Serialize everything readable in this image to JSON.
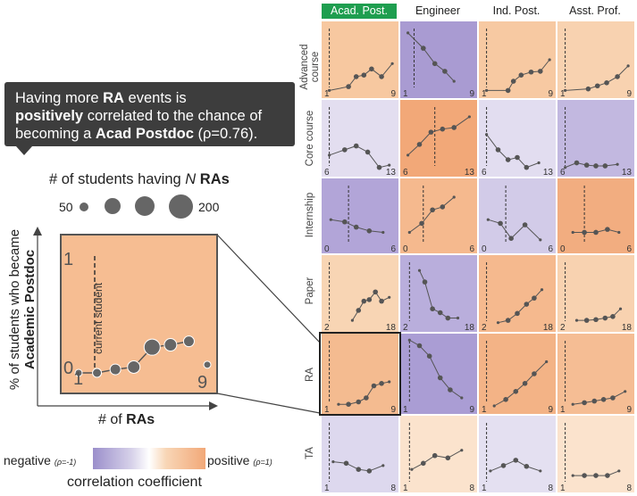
{
  "callout": {
    "line1_pre": "Having more ",
    "line1_bold": "RA",
    "line1_post": " events is",
    "line2_bold": "positively",
    "line2_post": " correlated to the chance of",
    "line3_pre": "becoming a ",
    "line3_bold": "Acad Postdoc",
    "line3_post": " (ρ=0.76)."
  },
  "size_legend": {
    "title_pre": "# of students having ",
    "title_n": "N",
    "title_bold": "RAs",
    "min": "50",
    "max": "200"
  },
  "zoom": {
    "y_axis_pre": "% of students who became",
    "y_axis_bold": "Academic Postdoc",
    "x_axis_pre": "# of ",
    "x_axis_bold": "RAs",
    "y_top": "1",
    "y_bottom": "0",
    "x_min": "1",
    "x_max": "9",
    "current_label": "current student"
  },
  "color_legend": {
    "negative": "negative",
    "negative_note": "(ρ=-1)",
    "positive": "positive",
    "positive_note": "(ρ=1)",
    "title": "correlation coefficient",
    "neg_color": "#9b8fcb",
    "pos_color": "#f2a878"
  },
  "columns": [
    "Acad. Post.",
    "Engineer",
    "Ind. Post.",
    "Asst. Prof."
  ],
  "active_column": 0,
  "rows": [
    "Advanced course",
    "Core course",
    "Internship",
    "Paper",
    "RA",
    "TA"
  ],
  "highlight_cell": {
    "row": 4,
    "col": 0
  },
  "axis_ranges": [
    [
      "1",
      "9"
    ],
    [
      "6",
      "13"
    ],
    [
      "0",
      "6"
    ],
    [
      "2",
      "18"
    ],
    [
      "1",
      "9"
    ],
    [
      "1",
      "8"
    ]
  ],
  "cell_colors": [
    [
      "#f7c8a0",
      "#a99bd2",
      "#f7c9a2",
      "#f8d2b0"
    ],
    [
      "#e3def0",
      "#f2a878",
      "#e2ddf0",
      "#c2b8e0"
    ],
    [
      "#b2a5d8",
      "#f5b98e",
      "#d2cbe8",
      "#f2ad80"
    ],
    [
      "#f8d5b4",
      "#b9aedc",
      "#f5b98e",
      "#f8d2b0"
    ],
    [
      "#f4bb90",
      "#aa9dd4",
      "#f3b386",
      "#f5bd94"
    ],
    [
      "#ddd8ee",
      "#fbe3cd",
      "#e4e0f1",
      "#fbe3cd"
    ]
  ],
  "zoom_points": [
    {
      "x": 1,
      "y": 0.0,
      "s": 4
    },
    {
      "x": 2,
      "y": 0.0,
      "s": 5
    },
    {
      "x": 3,
      "y": 0.03,
      "s": 6
    },
    {
      "x": 4,
      "y": 0.05,
      "s": 7
    },
    {
      "x": 5,
      "y": 0.22,
      "s": 9
    },
    {
      "x": 6,
      "y": 0.24,
      "s": 7
    },
    {
      "x": 7,
      "y": 0.27,
      "s": 6
    },
    {
      "x": 8,
      "y": 0.07,
      "s": 4
    }
  ],
  "cell_series": [
    [
      [
        [
          0.1,
          0.9
        ],
        [
          0.35,
          0.85
        ],
        [
          0.45,
          0.72
        ],
        [
          0.55,
          0.7
        ],
        [
          0.65,
          0.62
        ],
        [
          0.78,
          0.72
        ],
        [
          0.92,
          0.55
        ]
      ],
      [
        [
          0.1,
          0.15
        ],
        [
          0.3,
          0.35
        ],
        [
          0.45,
          0.55
        ],
        [
          0.58,
          0.65
        ],
        [
          0.7,
          0.78
        ]
      ],
      [
        [
          0.1,
          0.9
        ],
        [
          0.38,
          0.9
        ],
        [
          0.45,
          0.78
        ],
        [
          0.55,
          0.7
        ],
        [
          0.68,
          0.66
        ],
        [
          0.8,
          0.65
        ],
        [
          0.92,
          0.5
        ]
      ],
      [
        [
          0.1,
          0.9
        ],
        [
          0.4,
          0.88
        ],
        [
          0.52,
          0.84
        ],
        [
          0.64,
          0.8
        ],
        [
          0.78,
          0.72
        ],
        [
          0.92,
          0.58
        ]
      ]
    ],
    [
      [
        [
          0.1,
          0.72
        ],
        [
          0.3,
          0.65
        ],
        [
          0.45,
          0.6
        ],
        [
          0.6,
          0.68
        ],
        [
          0.75,
          0.88
        ],
        [
          0.88,
          0.85
        ]
      ],
      [
        [
          0.1,
          0.72
        ],
        [
          0.25,
          0.58
        ],
        [
          0.4,
          0.42
        ],
        [
          0.55,
          0.38
        ],
        [
          0.7,
          0.36
        ],
        [
          0.9,
          0.22
        ]
      ],
      [
        [
          0.1,
          0.45
        ],
        [
          0.25,
          0.65
        ],
        [
          0.38,
          0.78
        ],
        [
          0.5,
          0.75
        ],
        [
          0.62,
          0.88
        ],
        [
          0.78,
          0.82
        ]
      ],
      [
        [
          0.1,
          0.88
        ],
        [
          0.25,
          0.82
        ],
        [
          0.38,
          0.85
        ],
        [
          0.5,
          0.86
        ],
        [
          0.62,
          0.86
        ],
        [
          0.78,
          0.84
        ]
      ]
    ],
    [
      [
        [
          0.12,
          0.55
        ],
        [
          0.3,
          0.58
        ],
        [
          0.45,
          0.65
        ],
        [
          0.62,
          0.7
        ],
        [
          0.8,
          0.72
        ]
      ],
      [
        [
          0.12,
          0.72
        ],
        [
          0.28,
          0.6
        ],
        [
          0.42,
          0.42
        ],
        [
          0.55,
          0.38
        ],
        [
          0.7,
          0.25
        ]
      ],
      [
        [
          0.12,
          0.55
        ],
        [
          0.28,
          0.6
        ],
        [
          0.42,
          0.8
        ],
        [
          0.6,
          0.62
        ],
        [
          0.8,
          0.82
        ]
      ],
      [
        [
          0.2,
          0.72
        ],
        [
          0.35,
          0.72
        ],
        [
          0.5,
          0.72
        ],
        [
          0.65,
          0.68
        ],
        [
          0.8,
          0.72
        ]
      ]
    ],
    [
      [
        [
          0.4,
          0.85
        ],
        [
          0.48,
          0.72
        ],
        [
          0.55,
          0.6
        ],
        [
          0.62,
          0.58
        ],
        [
          0.7,
          0.48
        ],
        [
          0.78,
          0.6
        ],
        [
          0.88,
          0.55
        ]
      ],
      [
        [
          0.25,
          0.2
        ],
        [
          0.32,
          0.35
        ],
        [
          0.42,
          0.7
        ],
        [
          0.52,
          0.75
        ],
        [
          0.62,
          0.82
        ],
        [
          0.75,
          0.82
        ]
      ],
      [
        [
          0.25,
          0.88
        ],
        [
          0.38,
          0.85
        ],
        [
          0.5,
          0.76
        ],
        [
          0.62,
          0.64
        ],
        [
          0.72,
          0.56
        ],
        [
          0.82,
          0.45
        ]
      ],
      [
        [
          0.25,
          0.85
        ],
        [
          0.38,
          0.85
        ],
        [
          0.5,
          0.84
        ],
        [
          0.62,
          0.82
        ],
        [
          0.72,
          0.8
        ],
        [
          0.82,
          0.7
        ]
      ]
    ],
    [
      [
        [
          0.22,
          0.88
        ],
        [
          0.35,
          0.88
        ],
        [
          0.48,
          0.85
        ],
        [
          0.58,
          0.8
        ],
        [
          0.68,
          0.65
        ],
        [
          0.78,
          0.62
        ],
        [
          0.88,
          0.6
        ]
      ],
      [
        [
          0.12,
          0.08
        ],
        [
          0.25,
          0.15
        ],
        [
          0.38,
          0.28
        ],
        [
          0.52,
          0.55
        ],
        [
          0.65,
          0.7
        ],
        [
          0.8,
          0.8
        ]
      ],
      [
        [
          0.2,
          0.9
        ],
        [
          0.35,
          0.82
        ],
        [
          0.48,
          0.72
        ],
        [
          0.6,
          0.62
        ],
        [
          0.72,
          0.5
        ],
        [
          0.88,
          0.35
        ]
      ],
      [
        [
          0.2,
          0.88
        ],
        [
          0.35,
          0.86
        ],
        [
          0.48,
          0.84
        ],
        [
          0.6,
          0.82
        ],
        [
          0.72,
          0.8
        ],
        [
          0.88,
          0.72
        ]
      ]
    ],
    [
      [
        [
          0.15,
          0.6
        ],
        [
          0.32,
          0.62
        ],
        [
          0.48,
          0.7
        ],
        [
          0.62,
          0.72
        ],
        [
          0.8,
          0.65
        ]
      ],
      [
        [
          0.15,
          0.7
        ],
        [
          0.3,
          0.62
        ],
        [
          0.45,
          0.52
        ],
        [
          0.62,
          0.55
        ],
        [
          0.8,
          0.45
        ]
      ],
      [
        [
          0.15,
          0.72
        ],
        [
          0.32,
          0.65
        ],
        [
          0.48,
          0.58
        ],
        [
          0.62,
          0.66
        ],
        [
          0.8,
          0.72
        ]
      ],
      [
        [
          0.2,
          0.78
        ],
        [
          0.35,
          0.78
        ],
        [
          0.5,
          0.78
        ],
        [
          0.65,
          0.78
        ],
        [
          0.8,
          0.72
        ]
      ]
    ]
  ],
  "cell_current_x": [
    [
      0.1,
      0.18,
      0.1,
      0.1
    ],
    [
      0.1,
      0.45,
      0.1,
      0.1
    ],
    [
      0.35,
      0.3,
      0.35,
      0.35
    ],
    [
      0.1,
      0.12,
      0.1,
      0.1
    ],
    [
      0.1,
      0.12,
      0.1,
      0.1
    ],
    [
      0.1,
      0.12,
      0.1,
      0.1
    ]
  ]
}
